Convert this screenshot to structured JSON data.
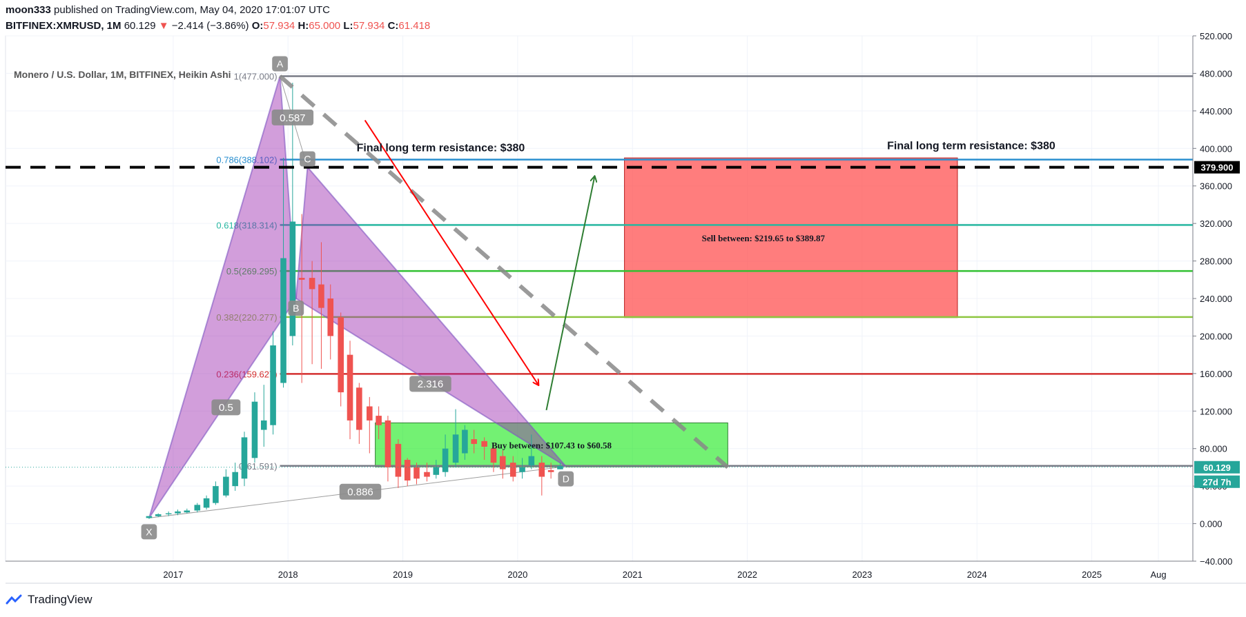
{
  "header": {
    "author": "moon333",
    "published_text": "published on TradingView.com, May 04, 2020 17:01:07 UTC",
    "symbol": "BITFINEX:XMRUSD,",
    "interval": "1M",
    "last": "60.129",
    "change": "−2.414 (−3.86%)",
    "open_label": "O:",
    "open": "57.934",
    "high_label": "H:",
    "high": "65.000",
    "low_label": "L:",
    "low": "57.934",
    "close_label": "C:",
    "close": "61.418"
  },
  "footer": {
    "brand": "TradingView"
  },
  "chart_data": {
    "type": "candlestick",
    "title": "Monero / U.S. Dollar, 1M, BITFINEX, Heikin Ashi",
    "ylim": [
      -40,
      520
    ],
    "y_ticks": [
      -40,
      0,
      40,
      80,
      120,
      160,
      200,
      240,
      280,
      320,
      360,
      400,
      440,
      480,
      520
    ],
    "y_tick_labels": [
      "−40.000",
      "0.000",
      "40.000",
      "80.000",
      "120.000",
      "160.000",
      "200.000",
      "240.000",
      "280.000",
      "320.000",
      "360.000",
      "400.000",
      "440.000",
      "480.000",
      "520.000"
    ],
    "x_ticks": [
      {
        "t": 2017.0,
        "label": "2017"
      },
      {
        "t": 2018.0,
        "label": "2018"
      },
      {
        "t": 2019.0,
        "label": "2019"
      },
      {
        "t": 2020.0,
        "label": "2020"
      },
      {
        "t": 2021.0,
        "label": "2021"
      },
      {
        "t": 2022.0,
        "label": "2022"
      },
      {
        "t": 2023.0,
        "label": "2023"
      },
      {
        "t": 2024.0,
        "label": "2024"
      },
      {
        "t": 2025.0,
        "label": "2025"
      },
      {
        "t": 2025.58,
        "label": "Aug"
      }
    ],
    "x_range": [
      2015.54,
      2025.88
    ],
    "candles": [
      {
        "t": 2016.79,
        "o": 6,
        "h": 8,
        "l": 5,
        "c": 8
      },
      {
        "t": 2016.87,
        "o": 8,
        "h": 11,
        "l": 7,
        "c": 10
      },
      {
        "t": 2016.96,
        "o": 10,
        "h": 13,
        "l": 8,
        "c": 11
      },
      {
        "t": 2017.04,
        "o": 11,
        "h": 15,
        "l": 9,
        "c": 13
      },
      {
        "t": 2017.12,
        "o": 12,
        "h": 16,
        "l": 11,
        "c": 14
      },
      {
        "t": 2017.21,
        "o": 14,
        "h": 22,
        "l": 12,
        "c": 20
      },
      {
        "t": 2017.29,
        "o": 17,
        "h": 30,
        "l": 15,
        "c": 27
      },
      {
        "t": 2017.37,
        "o": 22,
        "h": 45,
        "l": 20,
        "c": 40
      },
      {
        "t": 2017.46,
        "o": 30,
        "h": 58,
        "l": 28,
        "c": 50
      },
      {
        "t": 2017.54,
        "o": 40,
        "h": 65,
        "l": 35,
        "c": 55
      },
      {
        "t": 2017.62,
        "o": 48,
        "h": 98,
        "l": 40,
        "c": 92
      },
      {
        "t": 2017.71,
        "o": 70,
        "h": 140,
        "l": 65,
        "c": 130
      },
      {
        "t": 2017.79,
        "o": 100,
        "h": 148,
        "l": 82,
        "c": 110
      },
      {
        "t": 2017.87,
        "o": 105,
        "h": 205,
        "l": 95,
        "c": 190
      },
      {
        "t": 2017.96,
        "o": 150,
        "h": 390,
        "l": 145,
        "c": 283
      },
      {
        "t": 2018.04,
        "o": 200,
        "h": 470,
        "l": 190,
        "c": 322
      },
      {
        "t": 2018.12,
        "o": 262,
        "h": 330,
        "l": 150,
        "c": 260
      },
      {
        "t": 2018.21,
        "o": 262,
        "h": 280,
        "l": 170,
        "c": 250
      },
      {
        "t": 2018.29,
        "o": 255,
        "h": 300,
        "l": 165,
        "c": 230
      },
      {
        "t": 2018.37,
        "o": 240,
        "h": 255,
        "l": 175,
        "c": 200
      },
      {
        "t": 2018.46,
        "o": 220,
        "h": 225,
        "l": 125,
        "c": 140
      },
      {
        "t": 2018.54,
        "o": 180,
        "h": 195,
        "l": 90,
        "c": 110
      },
      {
        "t": 2018.62,
        "o": 145,
        "h": 150,
        "l": 85,
        "c": 100
      },
      {
        "t": 2018.71,
        "o": 125,
        "h": 135,
        "l": 75,
        "c": 110
      },
      {
        "t": 2018.79,
        "o": 115,
        "h": 125,
        "l": 90,
        "c": 105
      },
      {
        "t": 2018.87,
        "o": 110,
        "h": 115,
        "l": 45,
        "c": 60
      },
      {
        "t": 2018.96,
        "o": 85,
        "h": 90,
        "l": 38,
        "c": 50
      },
      {
        "t": 2019.04,
        "o": 68,
        "h": 70,
        "l": 40,
        "c": 46
      },
      {
        "t": 2019.12,
        "o": 60,
        "h": 65,
        "l": 42,
        "c": 48
      },
      {
        "t": 2019.21,
        "o": 55,
        "h": 65,
        "l": 45,
        "c": 50
      },
      {
        "t": 2019.29,
        "o": 52,
        "h": 68,
        "l": 48,
        "c": 60
      },
      {
        "t": 2019.37,
        "o": 55,
        "h": 95,
        "l": 50,
        "c": 80
      },
      {
        "t": 2019.46,
        "o": 65,
        "h": 122,
        "l": 60,
        "c": 95
      },
      {
        "t": 2019.54,
        "o": 75,
        "h": 105,
        "l": 68,
        "c": 100
      },
      {
        "t": 2019.62,
        "o": 90,
        "h": 100,
        "l": 75,
        "c": 85
      },
      {
        "t": 2019.71,
        "o": 88,
        "h": 92,
        "l": 68,
        "c": 82
      },
      {
        "t": 2019.79,
        "o": 80,
        "h": 85,
        "l": 55,
        "c": 65
      },
      {
        "t": 2019.87,
        "o": 72,
        "h": 78,
        "l": 48,
        "c": 58
      },
      {
        "t": 2019.96,
        "o": 65,
        "h": 72,
        "l": 45,
        "c": 50
      },
      {
        "t": 2020.04,
        "o": 55,
        "h": 70,
        "l": 48,
        "c": 60
      },
      {
        "t": 2020.12,
        "o": 62,
        "h": 95,
        "l": 58,
        "c": 72
      },
      {
        "t": 2020.21,
        "o": 65,
        "h": 72,
        "l": 30,
        "c": 50
      },
      {
        "t": 2020.29,
        "o": 57,
        "h": 65,
        "l": 48,
        "c": 55
      },
      {
        "t": 2020.37,
        "o": 57.934,
        "h": 65,
        "l": 57.934,
        "c": 61.418
      }
    ],
    "current_price": {
      "value": 60.129,
      "label": "60.129",
      "countdown": "27d 7h",
      "color": "#26a69a"
    },
    "resistance_marker": {
      "value": 379.9,
      "label": "379.900"
    },
    "fib_levels": [
      {
        "value": 477.0,
        "label": "1(477.000)",
        "color": "#787b86"
      },
      {
        "value": 388.102,
        "label": "0.786(388.102)",
        "color": "#2a8fcf"
      },
      {
        "value": 318.314,
        "label": "0.618(318.314)",
        "color": "#26b7a0"
      },
      {
        "value": 269.295,
        "label": "0.5(269.295)",
        "color": "#30c030"
      },
      {
        "value": 220.277,
        "label": "0.382(220.277)",
        "color": "#8dc63f"
      },
      {
        "value": 159.627,
        "label": "0.236(159.627)",
        "color": "#d32f2f"
      },
      {
        "value": 61.591,
        "label": "0(61.591)",
        "color": "#787b86"
      }
    ],
    "harmonic_points": [
      {
        "label": "X",
        "t": 2016.79,
        "v": 6
      },
      {
        "label": "A",
        "t": 2017.93,
        "v": 477
      },
      {
        "label": "B",
        "t": 2018.07,
        "v": 240
      },
      {
        "label": "C",
        "t": 2018.17,
        "v": 380
      },
      {
        "label": "D",
        "t": 2020.42,
        "v": 61
      }
    ],
    "harmonic_ratios": [
      {
        "label": "0.587",
        "t": 2018.04,
        "v": 433
      },
      {
        "label": "0.5",
        "t": 2017.46,
        "v": 124
      },
      {
        "label": "2.316",
        "t": 2019.24,
        "v": 149
      },
      {
        "label": "0.886",
        "t": 2018.63,
        "v": 34
      }
    ],
    "zones": [
      {
        "name": "sell",
        "label": "Sell between: $219.65 to $389.87",
        "t0": 2020.93,
        "t1": 2023.83,
        "v0": 219.65,
        "v1": 389.87,
        "color": "#ff5252"
      },
      {
        "name": "buy",
        "label": "Buy between: $107.43 to $60.58",
        "t0": 2018.76,
        "t1": 2021.83,
        "v0": 60.58,
        "v1": 107.43,
        "color": "#00e600"
      }
    ],
    "annotations": [
      {
        "text": "Final long term resistance: $380",
        "t": 2019.33,
        "v": 397
      },
      {
        "text": "Final long term resistance: $380",
        "t": 2023.95,
        "v": 399
      }
    ],
    "trend_lines": [
      {
        "name": "dashed-downtrend",
        "t0": 2017.93,
        "v0": 477,
        "t1": 2021.83,
        "v1": 60
      },
      {
        "name": "red-arrow",
        "t0": 2018.67,
        "v0": 430,
        "t1": 2020.18,
        "v1": 148
      },
      {
        "name": "green-arrow",
        "t0": 2020.25,
        "v0": 121,
        "t1": 2020.67,
        "v1": 370
      }
    ]
  }
}
